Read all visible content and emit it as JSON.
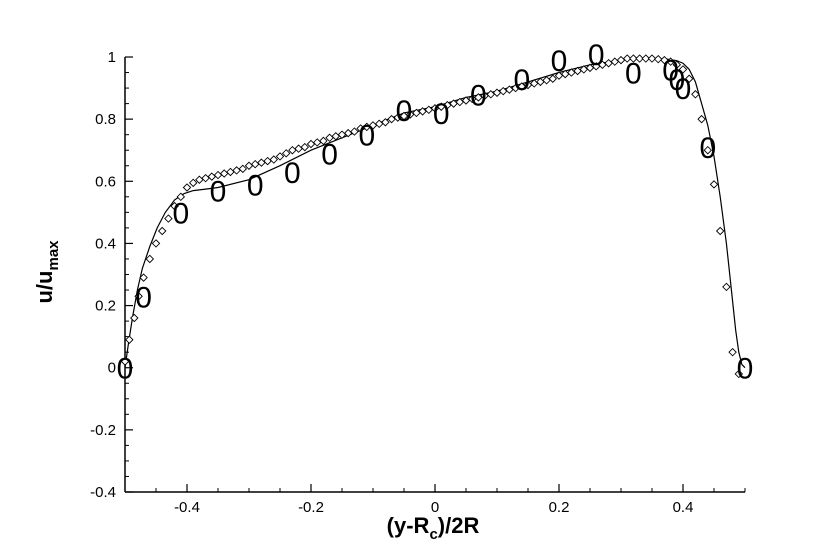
{
  "chart_data": {
    "type": "line",
    "title": "",
    "xlabel": {
      "main": "(y-R",
      "sub": "c",
      "tail": ")/2R"
    },
    "ylabel": {
      "main": "u/u",
      "sub": "max"
    },
    "xlim": [
      -0.5,
      0.5
    ],
    "ylim": [
      -0.4,
      1.0
    ],
    "x_ticks": [
      -0.4,
      -0.2,
      0,
      0.2,
      0.4
    ],
    "x_tick_labels": [
      "-0.4",
      "-0.2",
      "0",
      "0.2",
      "0.4"
    ],
    "y_ticks": [
      -0.4,
      -0.2,
      0,
      0.2,
      0.4,
      0.6,
      0.8,
      1
    ],
    "y_tick_labels": [
      "-0.4",
      "-0.2",
      "0",
      "0.2",
      "0.4",
      "0.6",
      "0.8",
      "1"
    ],
    "grid": false,
    "series": [
      {
        "style": "solid-line",
        "x": [
          -0.5,
          -0.495,
          -0.488,
          -0.48,
          -0.472,
          -0.46,
          -0.448,
          -0.435,
          -0.42,
          -0.405,
          -0.39,
          -0.37,
          -0.35,
          -0.3,
          -0.25,
          -0.2,
          -0.15,
          -0.1,
          -0.05,
          0.0,
          0.05,
          0.1,
          0.15,
          0.2,
          0.25,
          0.3,
          0.33,
          0.355,
          0.375,
          0.39,
          0.4,
          0.41,
          0.42,
          0.43,
          0.44,
          0.45,
          0.46,
          0.47,
          0.478,
          0.485,
          0.49,
          0.495,
          0.5
        ],
        "y": [
          0.0,
          0.07,
          0.16,
          0.25,
          0.32,
          0.39,
          0.45,
          0.5,
          0.54,
          0.56,
          0.57,
          0.575,
          0.58,
          0.605,
          0.65,
          0.7,
          0.74,
          0.78,
          0.82,
          0.84,
          0.87,
          0.89,
          0.92,
          0.95,
          0.975,
          0.99,
          0.995,
          0.995,
          0.993,
          0.988,
          0.98,
          0.96,
          0.92,
          0.85,
          0.78,
          0.68,
          0.55,
          0.4,
          0.25,
          0.12,
          0.05,
          0.01,
          0.0
        ]
      },
      {
        "style": "diamond",
        "x": [
          -0.5,
          -0.493,
          -0.485,
          -0.478,
          -0.47,
          -0.46,
          -0.45,
          -0.44,
          -0.43,
          -0.42,
          -0.41,
          -0.4,
          -0.39,
          -0.38,
          -0.37,
          -0.36,
          -0.35,
          -0.34,
          -0.33,
          -0.32,
          -0.31,
          -0.3,
          -0.29,
          -0.28,
          -0.27,
          -0.26,
          -0.25,
          -0.24,
          -0.23,
          -0.22,
          -0.21,
          -0.2,
          -0.19,
          -0.18,
          -0.17,
          -0.16,
          -0.15,
          -0.14,
          -0.13,
          -0.12,
          -0.11,
          -0.1,
          -0.09,
          -0.08,
          -0.07,
          -0.06,
          -0.05,
          -0.04,
          -0.03,
          -0.02,
          -0.01,
          0.0,
          0.01,
          0.02,
          0.03,
          0.04,
          0.05,
          0.06,
          0.07,
          0.08,
          0.09,
          0.1,
          0.11,
          0.12,
          0.13,
          0.14,
          0.15,
          0.16,
          0.17,
          0.18,
          0.19,
          0.2,
          0.21,
          0.22,
          0.23,
          0.24,
          0.25,
          0.26,
          0.27,
          0.28,
          0.29,
          0.3,
          0.31,
          0.32,
          0.33,
          0.34,
          0.35,
          0.36,
          0.37,
          0.38,
          0.39,
          0.4,
          0.41,
          0.42,
          0.43,
          0.44,
          0.45,
          0.46,
          0.47,
          0.48,
          0.49
        ],
        "y": [
          0.02,
          0.09,
          0.16,
          0.23,
          0.29,
          0.35,
          0.4,
          0.44,
          0.48,
          0.52,
          0.55,
          0.58,
          0.595,
          0.605,
          0.61,
          0.615,
          0.62,
          0.625,
          0.63,
          0.635,
          0.64,
          0.65,
          0.655,
          0.66,
          0.665,
          0.67,
          0.68,
          0.69,
          0.7,
          0.705,
          0.71,
          0.72,
          0.725,
          0.73,
          0.74,
          0.745,
          0.75,
          0.755,
          0.76,
          0.77,
          0.775,
          0.78,
          0.785,
          0.79,
          0.8,
          0.805,
          0.81,
          0.815,
          0.82,
          0.825,
          0.83,
          0.835,
          0.84,
          0.845,
          0.85,
          0.855,
          0.86,
          0.865,
          0.87,
          0.875,
          0.88,
          0.885,
          0.89,
          0.895,
          0.9,
          0.905,
          0.91,
          0.915,
          0.92,
          0.925,
          0.93,
          0.94,
          0.945,
          0.95,
          0.955,
          0.96,
          0.965,
          0.97,
          0.975,
          0.98,
          0.985,
          0.99,
          0.995,
          0.995,
          0.995,
          0.995,
          0.995,
          0.993,
          0.99,
          0.985,
          0.975,
          0.96,
          0.93,
          0.88,
          0.8,
          0.7,
          0.59,
          0.44,
          0.26,
          0.05,
          -0.02
        ]
      },
      {
        "style": "zero-glyph",
        "marker_text": "0",
        "x": [
          -0.5,
          -0.47,
          -0.41,
          -0.35,
          -0.29,
          -0.23,
          -0.17,
          -0.11,
          -0.05,
          0.01,
          0.07,
          0.14,
          0.2,
          0.26,
          0.32,
          0.38,
          0.39,
          0.4,
          0.44,
          0.5
        ],
        "y": [
          0.0,
          0.23,
          0.5,
          0.57,
          0.59,
          0.63,
          0.69,
          0.75,
          0.83,
          0.82,
          0.88,
          0.93,
          0.99,
          1.01,
          0.95,
          0.96,
          0.93,
          0.9,
          0.71,
          0.0
        ]
      }
    ]
  }
}
